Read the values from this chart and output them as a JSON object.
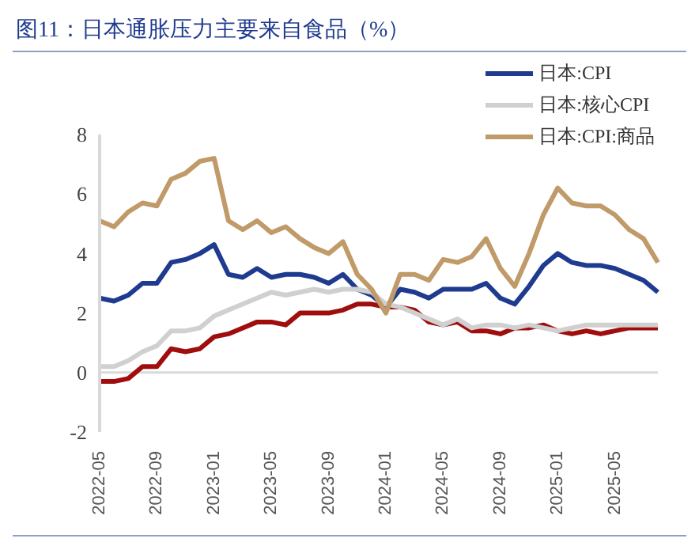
{
  "chart_data": {
    "type": "line",
    "title": "图11：日本通胀压力主要来自食品（%）",
    "categories": [
      "2022-05",
      null,
      null,
      null,
      "2022-09",
      null,
      null,
      null,
      "2023-01",
      null,
      null,
      null,
      "2023-05",
      null,
      null,
      null,
      "2023-09",
      null,
      null,
      null,
      "2024-01",
      null,
      null,
      null,
      "2024-05",
      null,
      null,
      null,
      "2024-09",
      null,
      null,
      null,
      "2025-01",
      null,
      null,
      null,
      "2025-05",
      null,
      null,
      null
    ],
    "series": [
      {
        "name": "日本:CPI",
        "color": "#1f3b8f",
        "values": [
          2.5,
          2.4,
          2.6,
          3.0,
          3.0,
          3.7,
          3.8,
          4.0,
          4.3,
          3.3,
          3.2,
          3.5,
          3.2,
          3.3,
          3.3,
          3.2,
          3.0,
          3.3,
          2.8,
          2.6,
          2.2,
          2.8,
          2.7,
          2.5,
          2.8,
          2.8,
          2.8,
          3.0,
          2.5,
          2.3,
          2.9,
          3.6,
          4.0,
          3.7,
          3.6,
          3.6,
          3.5,
          3.3,
          3.1,
          2.7
        ]
      },
      {
        "name": "日本:核心CPI",
        "color": "#d0d0d0",
        "values": [
          0.2,
          0.2,
          0.4,
          0.7,
          0.9,
          1.4,
          1.4,
          1.5,
          1.9,
          2.1,
          2.3,
          2.5,
          2.7,
          2.6,
          2.7,
          2.8,
          2.7,
          2.8,
          2.8,
          2.7,
          2.3,
          2.2,
          2.0,
          1.8,
          1.6,
          1.8,
          1.5,
          1.6,
          1.6,
          1.5,
          1.6,
          1.5,
          1.4,
          1.5,
          1.6,
          1.6,
          1.6,
          1.6,
          1.6,
          1.6
        ]
      },
      {
        "name": "日本:CPI:商品",
        "color": "#c09a68",
        "values": [
          5.1,
          4.9,
          5.4,
          5.7,
          5.6,
          6.5,
          6.7,
          7.1,
          7.2,
          5.1,
          4.8,
          5.1,
          4.7,
          4.9,
          4.5,
          4.2,
          4.0,
          4.4,
          3.3,
          2.8,
          2.0,
          3.3,
          3.3,
          3.1,
          3.8,
          3.7,
          3.9,
          4.5,
          3.5,
          2.9,
          4.0,
          5.3,
          6.2,
          5.7,
          5.6,
          5.6,
          5.3,
          4.8,
          4.5,
          3.7
        ]
      },
      {
        "color": "#a00d0d",
        "values": [
          -0.3,
          -0.3,
          -0.2,
          0.2,
          0.2,
          0.8,
          0.7,
          0.8,
          1.2,
          1.3,
          1.5,
          1.7,
          1.7,
          1.6,
          2.0,
          2.0,
          2.0,
          2.1,
          2.3,
          2.3,
          2.2,
          2.2,
          2.1,
          1.7,
          1.6,
          1.7,
          1.4,
          1.4,
          1.3,
          1.5,
          1.5,
          1.6,
          1.4,
          1.3,
          1.4,
          1.3,
          1.4,
          1.5,
          1.5,
          1.5
        ]
      }
    ],
    "ylim": [
      -2,
      8
    ],
    "yticks": [
      -2,
      0,
      2,
      4,
      6,
      8
    ],
    "grid": false,
    "legend": "top right",
    "marker": "none",
    "line_style": "solid",
    "ref_lines": [
      {
        "axis": "y",
        "value": 0,
        "color": "#d9d9d9"
      }
    ]
  }
}
